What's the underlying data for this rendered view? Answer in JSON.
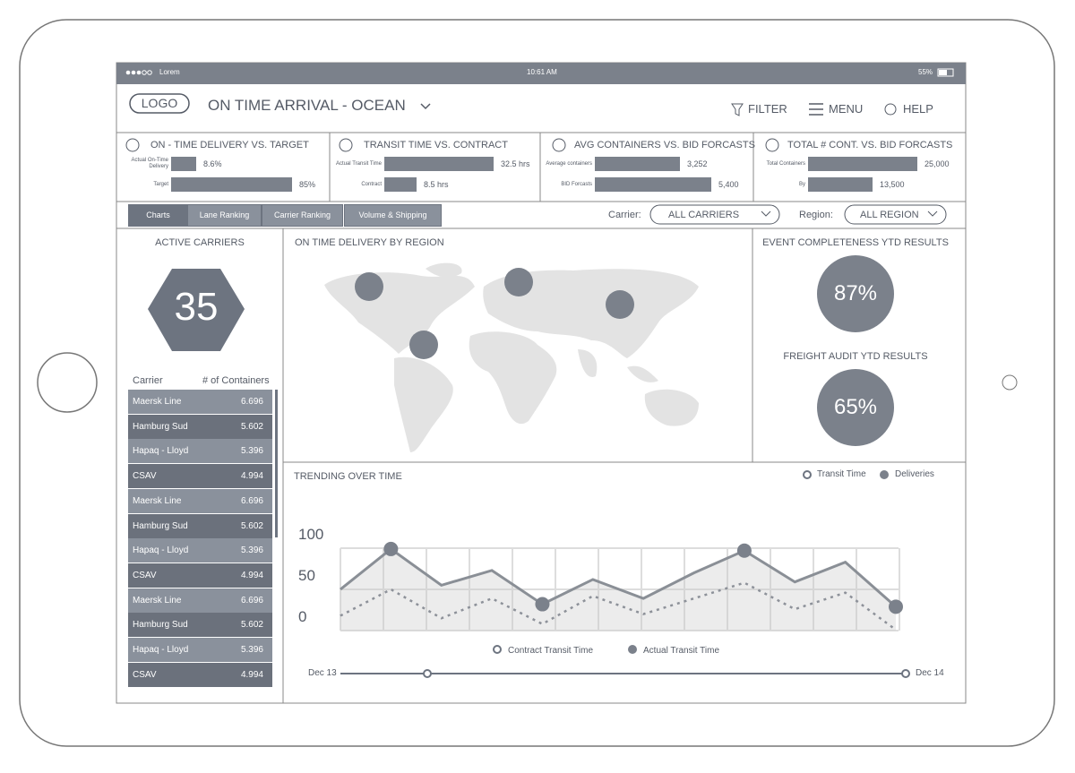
{
  "status_bar": {
    "carrier": "Lorem",
    "time": "10:61 AM",
    "battery": "55%"
  },
  "header": {
    "logo": "LOGO",
    "title": "ON TIME ARRIVAL - OCEAN",
    "nav": [
      "FILTER",
      "MENU",
      "HELP"
    ]
  },
  "kpis": [
    {
      "title": "ON - TIME DELIVERY VS. TARGET",
      "rows": [
        {
          "label": "Actual On-Time Delivery",
          "value": "8.6%"
        },
        {
          "label": "Target",
          "value": "85%"
        }
      ]
    },
    {
      "title": "TRANSIT TIME VS. CONTRACT",
      "rows": [
        {
          "label": "Actual Transit Time",
          "value": "32.5 hrs"
        },
        {
          "label": "Contract",
          "value": "8.5 hrs"
        }
      ]
    },
    {
      "title": "AVG CONTAINERS VS. BID FORCASTS",
      "rows": [
        {
          "label": "Average containers",
          "value": "3,252"
        },
        {
          "label": "BID Forcasts",
          "value": "5,400"
        }
      ]
    },
    {
      "title": "TOTAL # CONT. VS. BID FORCASTS",
      "rows": [
        {
          "label": "Total Containers",
          "value": "25,000"
        },
        {
          "label": "By",
          "value": "13,500"
        }
      ]
    }
  ],
  "tabs": [
    "Charts",
    "Lane Ranking",
    "Carrier Ranking",
    "Volume & Shipping"
  ],
  "filters": {
    "carrier_label": "Carrier:",
    "carrier_value": "ALL CARRIERS",
    "region_label": "Region:",
    "region_value": "ALL REGION"
  },
  "active_carriers": {
    "title": "ACTIVE CARRIERS",
    "count": "35"
  },
  "carrier_table": {
    "headers": [
      "Carrier",
      "# of Containers"
    ],
    "rows": [
      [
        "Maersk Line",
        "6.696"
      ],
      [
        "Hamburg Sud",
        "5.602"
      ],
      [
        "Hapaq - Lloyd",
        "5.396"
      ],
      [
        "CSAV",
        "4.994"
      ],
      [
        "Maersk Line",
        "6.696"
      ],
      [
        "Hamburg Sud",
        "5.602"
      ],
      [
        "Hapaq - Lloyd",
        "5.396"
      ],
      [
        "CSAV",
        "4.994"
      ],
      [
        "Maersk Line",
        "6.696"
      ],
      [
        "Hamburg Sud",
        "5.602"
      ],
      [
        "Hapaq - Lloyd",
        "5.396"
      ],
      [
        "CSAV",
        "4.994"
      ]
    ]
  },
  "map": {
    "title": "ON TIME DELIVERY BY REGION"
  },
  "event_completeness": {
    "title": "EVENT COMPLETENESS YTD RESULTS",
    "value": "87%"
  },
  "freight_audit": {
    "title": "FREIGHT AUDIT YTD RESULTS",
    "value": "65%"
  },
  "trending": {
    "title": "TRENDING OVER TIME",
    "legend": [
      "Transit Time",
      "Deliveries"
    ],
    "slider_start": "Dec 13",
    "slider_end": "Dec 14"
  },
  "chart_data": {
    "type": "line",
    "categories": [
      null,
      null,
      null,
      null,
      null,
      null,
      null,
      null,
      null,
      null,
      null,
      null
    ],
    "ylim": [
      0,
      100
    ],
    "yticks": [
      0,
      50,
      100
    ],
    "grid": true,
    "series": [
      {
        "name": "Contract Transit Time",
        "color": "#6d7480",
        "values": [
          18,
          50,
          15,
          39,
          8,
          42,
          20,
          39,
          58,
          26,
          46,
          1
        ]
      },
      {
        "name": "Actual Transit Time",
        "color": "#8a8f96",
        "values": [
          50,
          99,
          55,
          73,
          32,
          62,
          39,
          70,
          97,
          59,
          83,
          29
        ]
      }
    ]
  }
}
